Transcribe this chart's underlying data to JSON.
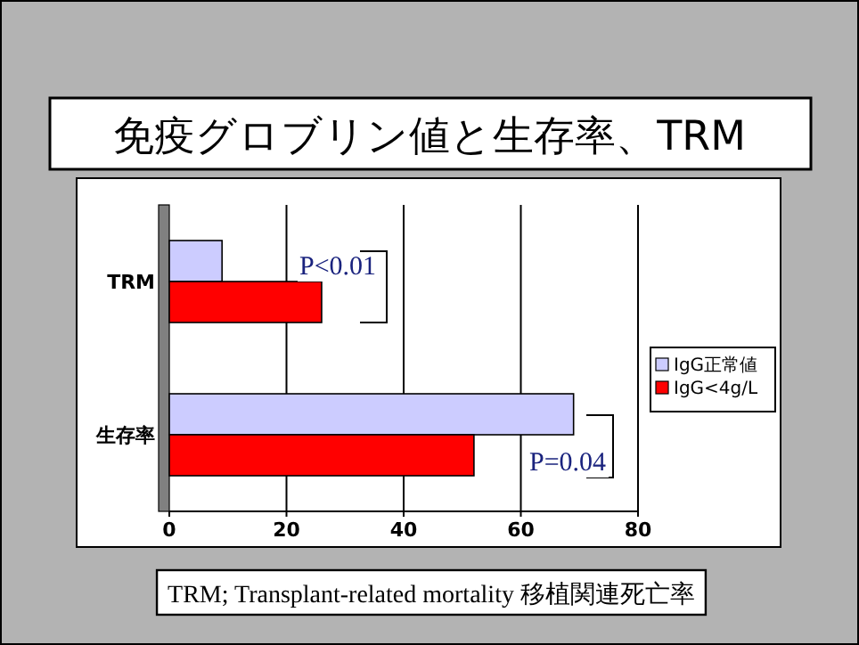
{
  "chart_data": {
    "type": "bar",
    "orientation": "horizontal",
    "title": "免疫グロブリン値と生存率、TRM",
    "categories": [
      "TRM",
      "生存率"
    ],
    "series": [
      {
        "name": "IgG正常値",
        "color": "#ccccff",
        "values": [
          9,
          69
        ]
      },
      {
        "name": "IgG<4g/L",
        "color": "#ff0000",
        "values": [
          26,
          52
        ]
      }
    ],
    "xlim": [
      0,
      80
    ],
    "xticks": [
      0,
      20,
      40,
      60,
      80
    ],
    "grid": "x",
    "legend": "right",
    "annotations": [
      "P<0.01",
      "P=0.04",
      "TRM; Transplant-related mortality 移植関連死亡率"
    ]
  }
}
